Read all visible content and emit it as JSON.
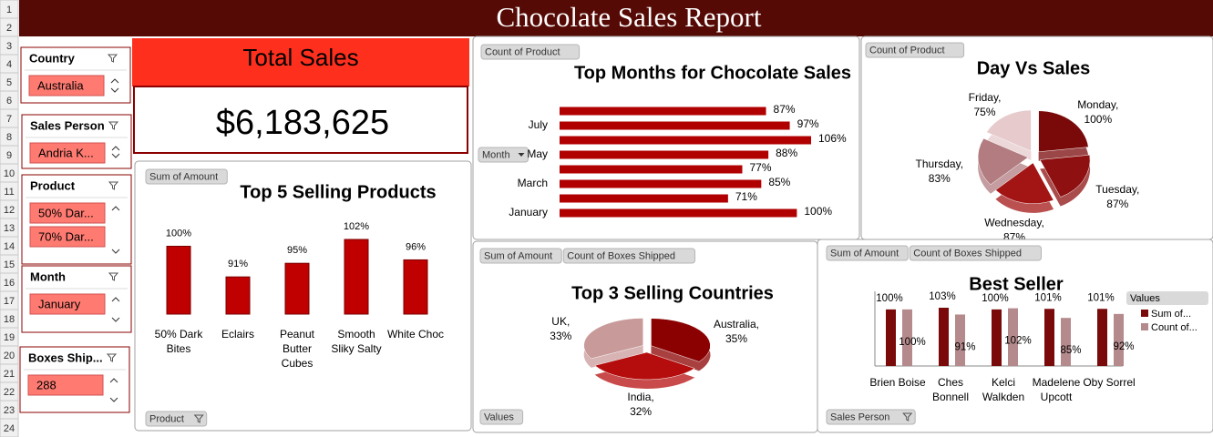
{
  "title": "Chocolate Sales Report",
  "row_headers": [
    "1",
    "2",
    "3",
    "4",
    "5",
    "6",
    "7",
    "8",
    "9",
    "10",
    "11",
    "12",
    "13",
    "14",
    "15",
    "16",
    "17",
    "18",
    "19",
    "20",
    "21",
    "22",
    "23",
    "24"
  ],
  "slicers": [
    {
      "title": "Country",
      "items": [
        "Australia"
      ]
    },
    {
      "title": "Sales Person",
      "items": [
        "Andria K..."
      ]
    },
    {
      "title": "Product",
      "items": [
        "50% Dar...",
        "70% Dar..."
      ]
    },
    {
      "title": "Month",
      "items": [
        "January"
      ]
    },
    {
      "title": "Boxes Ship...",
      "items": [
        "288"
      ]
    }
  ],
  "total_sales": {
    "title": "Total Sales",
    "value": "$6,183,625"
  },
  "chart_data": [
    {
      "type": "bar",
      "title": "Top 5 Selling Products",
      "field_buttons": [
        "Sum of Amount",
        "Product"
      ],
      "categories": [
        "50% Dark Bites",
        "Eclairs",
        "Peanut Butter Cubes",
        "Smooth Sliky Salty",
        "White Choc"
      ],
      "values": [
        100,
        91,
        95,
        102,
        96
      ],
      "value_labels": [
        "100%",
        "91%",
        "95%",
        "102%",
        "96%"
      ],
      "color": "#c00000"
    },
    {
      "type": "hbar",
      "title": "Top Months for Chocolate Sales",
      "field_buttons": [
        "Count of Product",
        "Month"
      ],
      "categories": [
        "January",
        null,
        "March",
        null,
        "May",
        null,
        "July",
        null
      ],
      "values": [
        100,
        71,
        85,
        77,
        88,
        106,
        97,
        87
      ],
      "value_labels": [
        "100%",
        "71%",
        "85%",
        "77%",
        "88%",
        "106%",
        "97%",
        "87%"
      ],
      "color": "#b00000"
    },
    {
      "type": "pie",
      "title": "Day Vs Sales",
      "field_buttons": [
        "Count of Product"
      ],
      "categories": [
        "Monday",
        "Tuesday",
        "Wednesday",
        "Thursday",
        "Friday"
      ],
      "values": [
        100,
        87,
        87,
        83,
        75
      ],
      "value_labels": [
        "100%",
        "87%",
        "87%",
        "83%",
        "75%"
      ],
      "colors": [
        "#7a0a0a",
        "#8e1010",
        "#a31515",
        "#b27c80",
        "#e6cacc"
      ]
    },
    {
      "type": "pie",
      "title": "Top 3 Selling Countries",
      "field_buttons": [
        "Sum of Amount",
        "Count of Boxes Shipped",
        "Values"
      ],
      "categories": [
        "Australia",
        "India",
        "UK"
      ],
      "values": [
        35,
        32,
        33
      ],
      "value_labels": [
        "35%",
        "32%",
        "33%"
      ],
      "colors": [
        "#8b0000",
        "#b50d0d",
        "#c99a9a"
      ]
    },
    {
      "type": "grouped_bar",
      "title": "Best Seller",
      "field_buttons": [
        "Sum of Amount",
        "Count of Boxes Shipped",
        "Sales Person"
      ],
      "legend_title": "Values",
      "categories": [
        "Brien Boise",
        "Ches Bonnell",
        "Kelci Walkden",
        "Madelene Upcott",
        "Oby Sorrel"
      ],
      "series": [
        {
          "name": "Sum of...",
          "color": "#7a0a0a",
          "values": [
            100,
            103,
            100,
            101,
            101
          ],
          "value_labels": [
            "100%",
            "103%",
            "100%",
            "101%",
            "101%"
          ]
        },
        {
          "name": "Count of...",
          "color": "#b58a8c",
          "values": [
            100,
            91,
            102,
            85,
            92
          ],
          "value_labels": [
            "100%",
            "91%",
            "102%",
            "85%",
            "92%"
          ]
        }
      ]
    }
  ]
}
